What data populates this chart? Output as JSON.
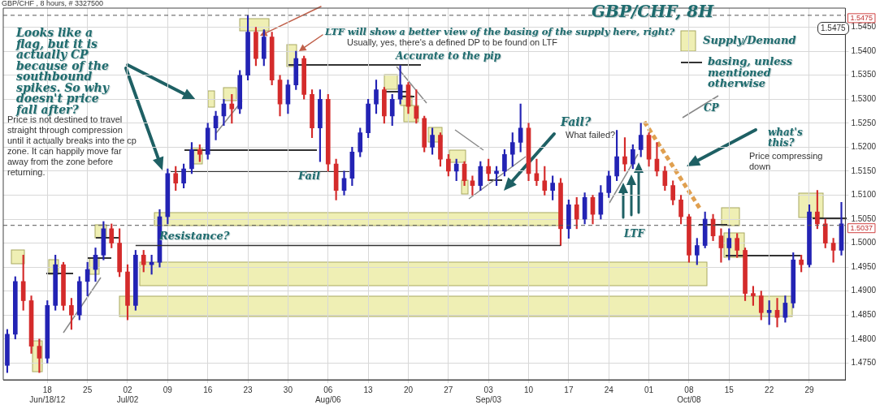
{
  "chart_data": {
    "type": "candlestick",
    "title": "GBP/CHF, 8H",
    "subtitle": "GBP/CHF , 8 hours, # 3327500",
    "categories": [
      null,
      null,
      null,
      null,
      null,
      "18\nJun/18/12",
      null,
      null,
      null,
      null,
      "25",
      null,
      null,
      null,
      null,
      "02\nJul/02",
      null,
      null,
      null,
      null,
      "09",
      null,
      null,
      null,
      null,
      "16",
      null,
      null,
      null,
      null,
      "23",
      null,
      null,
      null,
      null,
      "30",
      null,
      null,
      null,
      null,
      "06\nAug/06",
      null,
      null,
      null,
      null,
      "13",
      null,
      null,
      null,
      null,
      "20",
      null,
      null,
      null,
      null,
      "27",
      null,
      null,
      null,
      null,
      "03\nSep/03",
      null,
      null,
      null,
      null,
      "10",
      null,
      null,
      null,
      null,
      "17",
      null,
      null,
      null,
      null,
      "24",
      null,
      null,
      null,
      null,
      "01",
      null,
      null,
      null,
      null,
      "08\nOct/08",
      null,
      null,
      null,
      null,
      "15",
      null,
      null,
      null,
      null,
      "22",
      null,
      null,
      null,
      null,
      "29",
      null,
      null,
      null,
      null
    ],
    "ohlc": [
      [
        1.4745,
        1.482,
        1.473,
        1.481
      ],
      [
        1.481,
        1.493,
        1.48,
        1.492
      ],
      [
        1.492,
        1.4975,
        1.486,
        1.488
      ],
      [
        1.488,
        1.489,
        1.477,
        1.4785
      ],
      [
        1.4785,
        1.48,
        1.473,
        1.476
      ],
      [
        1.476,
        1.488,
        1.475,
        1.487
      ],
      [
        1.487,
        1.4975,
        1.486,
        1.4955
      ],
      [
        1.4955,
        1.496,
        1.486,
        1.487
      ],
      [
        1.487,
        1.4885,
        1.482,
        1.485
      ],
      [
        1.485,
        1.493,
        1.484,
        1.492
      ],
      [
        1.492,
        1.496,
        1.489,
        1.4945
      ],
      [
        1.4945,
        1.499,
        1.492,
        1.4975
      ],
      [
        1.4975,
        1.5045,
        1.4965,
        1.503
      ],
      [
        1.503,
        1.504,
        1.499,
        1.5
      ],
      [
        1.5,
        1.503,
        1.493,
        1.494
      ],
      [
        1.494,
        1.4955,
        1.484,
        1.487
      ],
      [
        1.487,
        1.4985,
        1.486,
        1.4975
      ],
      [
        1.4975,
        1.4985,
        1.494,
        1.4955
      ],
      [
        1.4955,
        1.4975,
        1.4935,
        1.496
      ],
      [
        1.496,
        1.507,
        1.495,
        1.5055
      ],
      [
        1.5055,
        1.5155,
        1.504,
        1.5145
      ],
      [
        1.5145,
        1.516,
        1.511,
        1.5125
      ],
      [
        1.5125,
        1.5165,
        1.5115,
        1.5155
      ],
      [
        1.5155,
        1.521,
        1.5145,
        1.5195
      ],
      [
        1.5195,
        1.5205,
        1.517,
        1.5185
      ],
      [
        1.5185,
        1.525,
        1.5175,
        1.524
      ],
      [
        1.524,
        1.5275,
        1.5215,
        1.5265
      ],
      [
        1.5265,
        1.53,
        1.5245,
        1.529
      ],
      [
        1.529,
        1.531,
        1.525,
        1.528
      ],
      [
        1.528,
        1.536,
        1.527,
        1.535
      ],
      [
        1.535,
        1.5475,
        1.534,
        1.544
      ],
      [
        1.544,
        1.545,
        1.537,
        1.5385
      ],
      [
        1.5385,
        1.5445,
        1.537,
        1.543
      ],
      [
        1.543,
        1.544,
        1.533,
        1.534
      ],
      [
        1.534,
        1.535,
        1.5265,
        1.529
      ],
      [
        1.529,
        1.534,
        1.527,
        1.533
      ],
      [
        1.533,
        1.54,
        1.532,
        1.5385
      ],
      [
        1.5385,
        1.539,
        1.53,
        1.531
      ],
      [
        1.531,
        1.532,
        1.522,
        1.524
      ],
      [
        1.524,
        1.532,
        1.517,
        1.53
      ],
      [
        1.53,
        1.531,
        1.515,
        1.5165
      ],
      [
        1.5165,
        1.5175,
        1.509,
        1.511
      ],
      [
        1.511,
        1.515,
        1.51,
        1.5135
      ],
      [
        1.5135,
        1.52,
        1.512,
        1.519
      ],
      [
        1.519,
        1.524,
        1.518,
        1.523
      ],
      [
        1.523,
        1.53,
        1.522,
        1.529
      ],
      [
        1.529,
        1.534,
        1.527,
        1.532
      ],
      [
        1.532,
        1.5325,
        1.525,
        1.5265
      ],
      [
        1.5265,
        1.531,
        1.5245,
        1.53
      ],
      [
        1.53,
        1.537,
        1.529,
        1.533
      ],
      [
        1.533,
        1.5335,
        1.527,
        1.5285
      ],
      [
        1.5285,
        1.532,
        1.525,
        1.526
      ],
      [
        1.526,
        1.5265,
        1.519,
        1.52
      ],
      [
        1.52,
        1.524,
        1.5185,
        1.5225
      ],
      [
        1.5225,
        1.523,
        1.516,
        1.5175
      ],
      [
        1.5175,
        1.5185,
        1.514,
        1.515
      ],
      [
        1.515,
        1.5175,
        1.513,
        1.5165
      ],
      [
        1.5165,
        1.517,
        1.512,
        1.513
      ],
      [
        1.513,
        1.514,
        1.51,
        1.512
      ],
      [
        1.512,
        1.517,
        1.511,
        1.516
      ],
      [
        1.516,
        1.5175,
        1.513,
        1.5145
      ],
      [
        1.5145,
        1.516,
        1.512,
        1.515
      ],
      [
        1.515,
        1.5195,
        1.514,
        1.5185
      ],
      [
        1.5185,
        1.523,
        1.516,
        1.521
      ],
      [
        1.521,
        1.529,
        1.519,
        1.524
      ],
      [
        1.524,
        1.525,
        1.513,
        1.5145
      ],
      [
        1.5145,
        1.5175,
        1.512,
        1.513
      ],
      [
        1.513,
        1.516,
        1.51,
        1.511
      ],
      [
        1.511,
        1.514,
        1.509,
        1.5125
      ],
      [
        1.5125,
        1.5135,
        1.4995,
        1.503
      ],
      [
        1.503,
        1.509,
        1.501,
        1.508
      ],
      [
        1.508,
        1.5095,
        1.503,
        1.505
      ],
      [
        1.505,
        1.5105,
        1.504,
        1.5095
      ],
      [
        1.5095,
        1.51,
        1.504,
        1.506
      ],
      [
        1.506,
        1.512,
        1.505,
        1.5105
      ],
      [
        1.5105,
        1.515,
        1.5095,
        1.514
      ],
      [
        1.514,
        1.5235,
        1.513,
        1.518
      ],
      [
        1.518,
        1.522,
        1.515,
        1.5165
      ],
      [
        1.5165,
        1.5205,
        1.5155,
        1.5195
      ],
      [
        1.5195,
        1.525,
        1.518,
        1.5225
      ],
      [
        1.5225,
        1.523,
        1.516,
        1.5175
      ],
      [
        1.5175,
        1.521,
        1.514,
        1.515
      ],
      [
        1.515,
        1.516,
        1.511,
        1.512
      ],
      [
        1.512,
        1.513,
        1.508,
        1.509
      ],
      [
        1.509,
        1.51,
        1.504,
        1.5055
      ],
      [
        1.5055,
        1.506,
        1.496,
        1.4975
      ],
      [
        1.4975,
        1.501,
        1.4955,
        1.4995
      ],
      [
        1.4995,
        1.5065,
        1.499,
        1.505
      ],
      [
        1.505,
        1.506,
        1.5005,
        1.5015
      ],
      [
        1.5015,
        1.503,
        1.496,
        1.499
      ],
      [
        1.499,
        1.503,
        1.4965,
        1.501
      ],
      [
        1.501,
        1.502,
        1.497,
        1.4985
      ],
      [
        1.4985,
        1.499,
        1.488,
        1.4895
      ],
      [
        1.4895,
        1.491,
        1.487,
        1.489
      ],
      [
        1.489,
        1.49,
        1.484,
        1.4855
      ],
      [
        1.4855,
        1.488,
        1.483,
        1.486
      ],
      [
        1.486,
        1.4885,
        1.4825,
        1.4845
      ],
      [
        1.4845,
        1.489,
        1.4835,
        1.4875
      ],
      [
        1.4875,
        1.498,
        1.4865,
        1.4965
      ],
      [
        1.4965,
        1.4975,
        1.494,
        1.4955
      ],
      [
        1.4955,
        1.508,
        1.495,
        1.5065
      ],
      [
        1.5065,
        1.511,
        1.503,
        1.504
      ],
      [
        1.504,
        1.505,
        1.499,
        1.5
      ],
      [
        1.5,
        1.501,
        1.496,
        1.4985
      ],
      [
        1.4985,
        1.5085,
        1.4975,
        1.504
      ]
    ],
    "colors": [
      "#2323b4",
      "#2323b4",
      "#d42b2b",
      "#d42b2b",
      "#d42b2b",
      "#2323b4",
      "#2323b4",
      "#d42b2b",
      "#d42b2b",
      "#2323b4",
      "#2323b4",
      "#2323b4",
      "#2323b4",
      "#d42b2b",
      "#d42b2b",
      "#d42b2b",
      "#2323b4",
      "#d42b2b",
      "#2323b4",
      "#2323b4",
      "#2323b4",
      "#d42b2b",
      "#2323b4",
      "#2323b4",
      "#d42b2b",
      "#2323b4",
      "#2323b4",
      "#2323b4",
      "#d42b2b",
      "#2323b4",
      "#2323b4",
      "#d42b2b",
      "#2323b4",
      "#d42b2b",
      "#d42b2b",
      "#2323b4",
      "#2323b4",
      "#d42b2b",
      "#d42b2b",
      "#2323b4",
      "#d42b2b",
      "#d42b2b",
      "#2323b4",
      "#2323b4",
      "#2323b4",
      "#2323b4",
      "#2323b4",
      "#d42b2b",
      "#2323b4",
      "#2323b4",
      "#d42b2b",
      "#d42b2b",
      "#d42b2b",
      "#2323b4",
      "#d42b2b",
      "#d42b2b",
      "#2323b4",
      "#d42b2b",
      "#d42b2b",
      "#2323b4",
      "#d42b2b",
      "#2323b4",
      "#2323b4",
      "#2323b4",
      "#2323b4",
      "#d42b2b",
      "#d42b2b",
      "#d42b2b",
      "#2323b4",
      "#d42b2b",
      "#2323b4",
      "#d42b2b",
      "#2323b4",
      "#d42b2b",
      "#2323b4",
      "#2323b4",
      "#2323b4",
      "#d42b2b",
      "#2323b4",
      "#2323b4",
      "#d42b2b",
      "#d42b2b",
      "#d42b2b",
      "#d42b2b",
      "#d42b2b",
      "#d42b2b",
      "#2323b4",
      "#2323b4",
      "#d42b2b",
      "#d42b2b",
      "#2323b4",
      "#d42b2b",
      "#d42b2b",
      "#d42b2b",
      "#d42b2b",
      "#2323b4",
      "#d42b2b",
      "#2323b4",
      "#2323b4",
      "#d42b2b",
      "#2323b4",
      "#d42b2b",
      "#d42b2b",
      "#d42b2b",
      "#2323b4"
    ],
    "ylim": [
      1.4715,
      1.549
    ],
    "yticks": [
      {
        "value": 1.475,
        "label": "1.4750"
      },
      {
        "value": 1.48,
        "label": "1.4800"
      },
      {
        "value": 1.485,
        "label": "1.4850"
      },
      {
        "value": 1.49,
        "label": "1.4900"
      },
      {
        "value": 1.495,
        "label": "1.4950"
      },
      {
        "value": 1.5,
        "label": "1.5000"
      },
      {
        "value": 1.505,
        "label": "1.5050"
      },
      {
        "value": 1.51,
        "label": "1.5100"
      },
      {
        "value": 1.515,
        "label": "1.5150"
      },
      {
        "value": 1.52,
        "label": "1.5200"
      },
      {
        "value": 1.525,
        "label": "1.5250"
      },
      {
        "value": 1.53,
        "label": "1.5300"
      },
      {
        "value": 1.535,
        "label": "1.5350"
      },
      {
        "value": 1.54,
        "label": "1.5400"
      },
      {
        "value": 1.545,
        "label": "1.5450"
      }
    ],
    "grid": true,
    "series": [
      {
        "type": "line",
        "color": "#333333",
        "values": [
          null,
          null,
          null,
          null,
          null,
          null,
          null,
          null,
          null,
          null,
          null,
          null,
          null,
          null,
          null,
          null,
          1.4995,
          1.4995,
          1.4995,
          1.4995,
          1.4995,
          1.4995,
          1.4995,
          1.4995,
          1.4995,
          1.4995,
          1.4995,
          1.4995,
          1.4995,
          1.4995,
          1.4995,
          1.4995,
          1.4995,
          1.4995,
          1.4995,
          1.4995,
          1.4995,
          1.4995,
          1.4995,
          1.4995,
          1.4995,
          1.4995,
          1.4995,
          1.4995,
          1.4995,
          1.4995,
          1.4995,
          1.4995,
          1.4995,
          1.4995,
          1.4995,
          1.4995,
          1.4995,
          1.4995,
          1.4995,
          1.4995,
          1.4995,
          1.4995,
          1.4995,
          1.4995,
          1.4995,
          1.4995,
          1.4995,
          1.4995,
          1.4995,
          1.4995,
          1.4995,
          1.4995,
          1.4995,
          1.4995,
          null,
          null,
          null,
          null,
          null,
          null,
          null,
          null,
          null,
          null,
          null,
          null,
          null,
          null,
          null,
          null,
          null,
          null,
          null,
          null,
          null,
          null,
          null,
          null,
          null,
          null,
          null,
          null,
          null,
          null,
          null,
          null,
          null,
          null,
          null
        ]
      }
    ],
    "ref_lines": [
      {
        "axis": "y",
        "value": 1.5475,
        "label": "1.5475",
        "color": "#555555",
        "line_style": "dashed"
      },
      {
        "axis": "y",
        "value": 1.5037,
        "label": "1.5037",
        "color": "#555555",
        "line_style": "dashed"
      }
    ],
    "annotations": [
      "Looks like a flag, but it is actually CP because of the southbound spikes. So why doesn't price fall after?",
      "Price is not destined to travel straight through compression until it actually breaks into the cp zone. It can happily move far away from the zone before returning.",
      "LTF will show a better view of the basing of the supply here, right?",
      "Usually, yes, there's a defined DP to be found on LTF",
      "Accurate to the pip",
      "Supply/Demand",
      "basing, unless mentioned otherwise",
      "CP",
      "Fail?",
      "What failed?",
      "what's this?",
      "Price compressing down",
      "Resistance?",
      "Fail",
      "LTF",
      "1.5475"
    ]
  }
}
